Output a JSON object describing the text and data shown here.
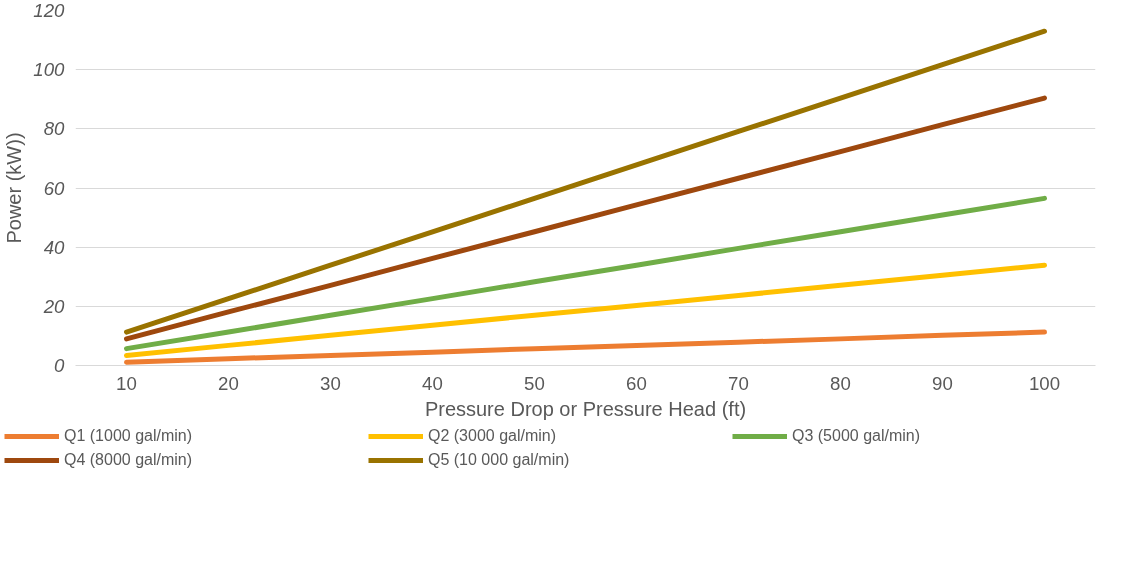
{
  "chart_data": {
    "type": "line",
    "xlabel": "Pressure Drop or Pressure Head (ft)",
    "ylabel": "Power (kW))",
    "x": [
      10,
      20,
      30,
      40,
      50,
      60,
      70,
      80,
      90,
      100
    ],
    "xlim": [
      5,
      105
    ],
    "xticks": [
      10,
      20,
      30,
      40,
      50,
      60,
      70,
      80,
      90,
      100
    ],
    "ylim": [
      0,
      120
    ],
    "yticks": [
      0,
      20,
      40,
      60,
      80,
      100,
      120
    ],
    "grid": "y",
    "legend": "bottom",
    "marker": "none",
    "line_style": "solid",
    "series": [
      {
        "name": "Q1 (1000 gal/min)",
        "color": "#ed7d31",
        "values": [
          1.1,
          2.3,
          3.4,
          4.5,
          5.7,
          6.8,
          7.9,
          9.0,
          10.2,
          11.3
        ]
      },
      {
        "name": "Q2 (3000 gal/min)",
        "color": "#ffc000",
        "values": [
          3.4,
          6.8,
          10.2,
          13.6,
          17.0,
          20.3,
          23.7,
          27.1,
          30.5,
          33.9
        ]
      },
      {
        "name": "Q3 (5000 gal/min)",
        "color": "#70ad47",
        "values": [
          5.7,
          11.3,
          17.0,
          22.6,
          28.3,
          33.9,
          39.6,
          45.2,
          50.9,
          56.5
        ]
      },
      {
        "name": "Q4 (8000 gal/min)",
        "color": "#9e480e",
        "values": [
          9.0,
          18.1,
          27.1,
          36.2,
          45.2,
          54.3,
          63.3,
          72.3,
          81.4,
          90.4
        ]
      },
      {
        "name": "Q5 (10 000 gal/min)",
        "color": "#997300",
        "values": [
          11.3,
          22.6,
          33.9,
          45.2,
          56.5,
          67.8,
          79.1,
          90.4,
          101.7,
          113.0
        ]
      }
    ]
  }
}
